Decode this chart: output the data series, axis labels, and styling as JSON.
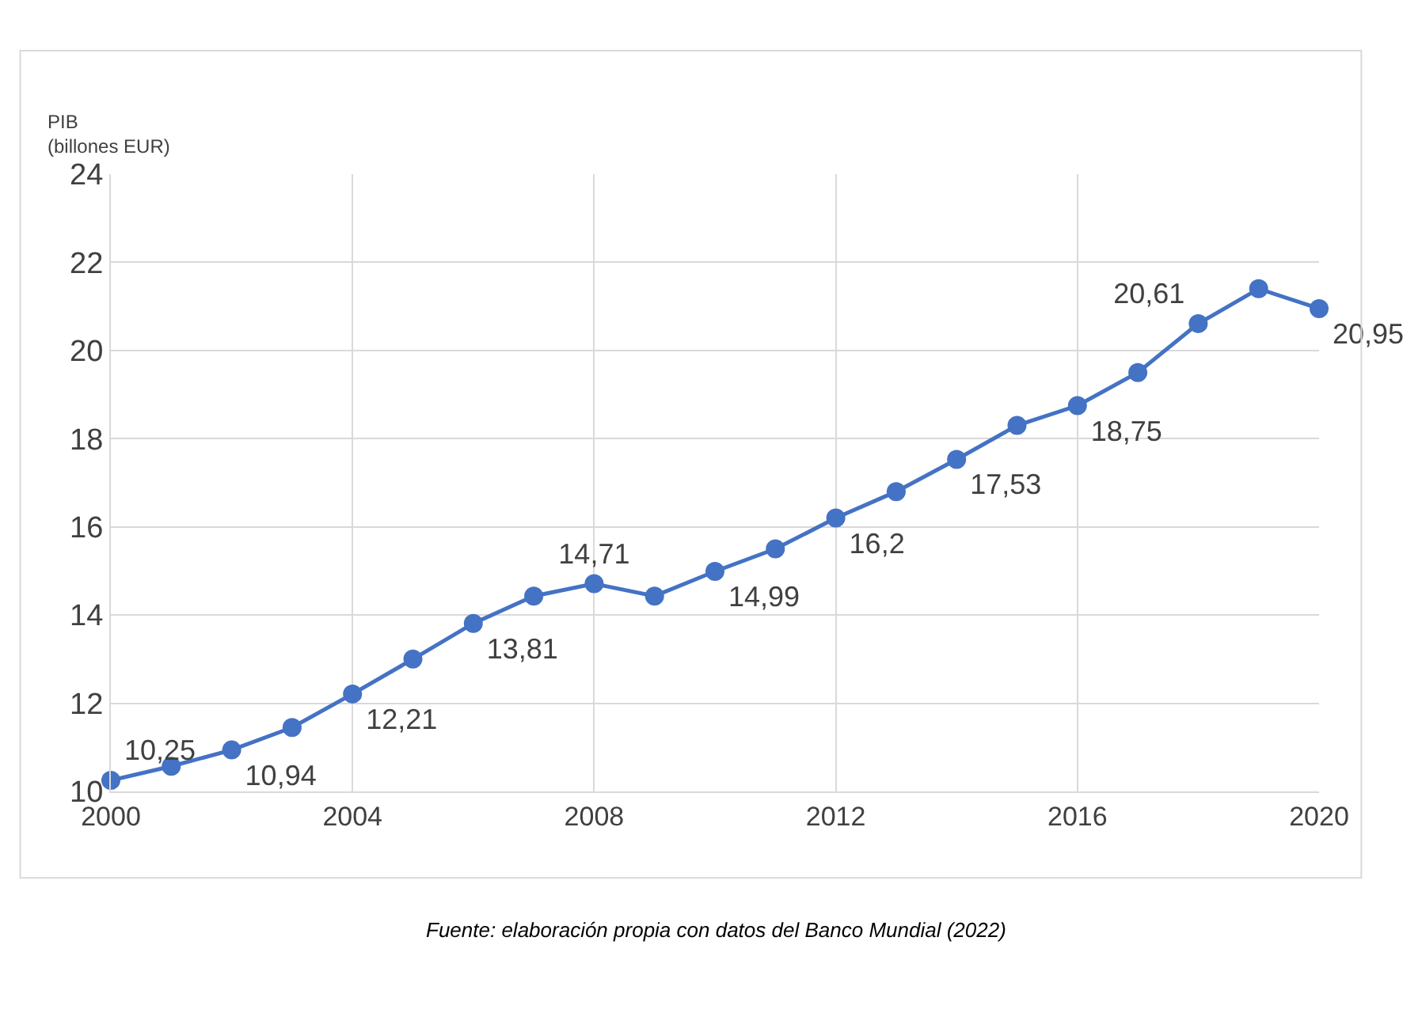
{
  "chart_data": {
    "type": "line",
    "ylabel": "PIB\n(billones EUR)",
    "x": [
      2000,
      2001,
      2002,
      2003,
      2004,
      2005,
      2006,
      2007,
      2008,
      2009,
      2010,
      2011,
      2012,
      2013,
      2014,
      2015,
      2016,
      2017,
      2018,
      2019,
      2020
    ],
    "series": [
      {
        "color": "#4472c4",
        "values": [
          10.25,
          10.57,
          10.94,
          11.45,
          12.21,
          13.0,
          13.81,
          14.43,
          14.71,
          14.43,
          14.99,
          15.5,
          16.2,
          16.8,
          17.53,
          18.3,
          18.75,
          19.5,
          20.61,
          21.4,
          20.95
        ],
        "value_labels": [
          "10,25",
          null,
          "10,94",
          null,
          "12,21",
          null,
          "13,81",
          null,
          "14,71",
          null,
          "14,99",
          null,
          "16,2",
          null,
          "17,53",
          null,
          "18,75",
          null,
          "20,61",
          null,
          "20,95"
        ]
      }
    ],
    "xlim": [
      2000,
      2020
    ],
    "xticks": [
      2000,
      2004,
      2008,
      2012,
      2016,
      2020
    ],
    "ylim": [
      10,
      24
    ],
    "yticks": [
      10,
      12,
      14,
      16,
      18,
      20,
      22,
      24
    ],
    "grid": true,
    "marker": "circle",
    "line_style": "solid",
    "annotations": [
      "Fuente: elaboración propia con datos del Banco Mundial (2022)"
    ]
  }
}
